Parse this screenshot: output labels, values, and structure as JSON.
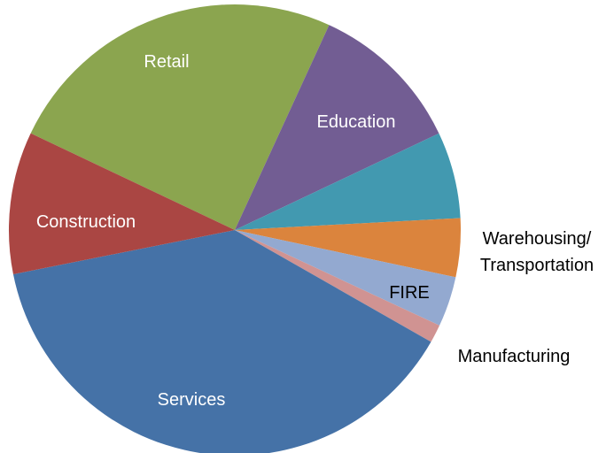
{
  "chart_data": {
    "type": "pie",
    "categories": [
      "Retail",
      "Education",
      null,
      "Warehousing/ Transportation",
      "FIRE",
      "Manufacturing",
      "Services",
      "Construction"
    ],
    "values": [
      24.8,
      11.1,
      6.2,
      4.2,
      3.6,
      1.3,
      38.6,
      10.2
    ],
    "colors": [
      "#8ba54f",
      "#725d93",
      "#4299b0",
      "#db843d",
      "#93a9d0",
      "#d09392",
      "#4572a7",
      "#aa4643"
    ]
  }
}
